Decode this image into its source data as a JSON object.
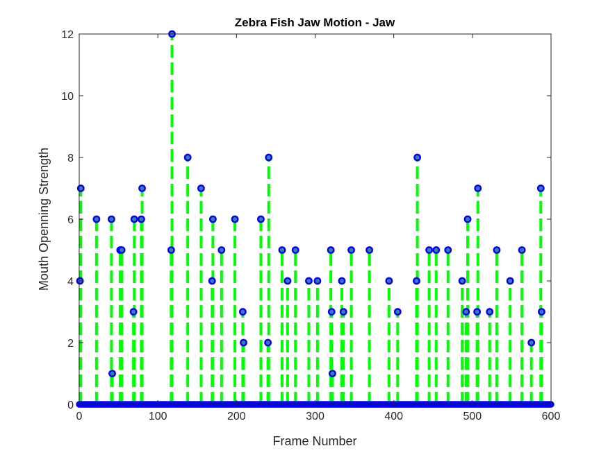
{
  "chart_data": {
    "type": "stem",
    "title": "Zebra Fish Jaw Motion - Jaw",
    "xlabel": "Frame Number",
    "ylabel": "Mouth Openning Strength",
    "xlim": [
      0,
      600
    ],
    "ylim": [
      0,
      12
    ],
    "xticks": [
      0,
      100,
      200,
      300,
      400,
      500,
      600
    ],
    "yticks": [
      0,
      2,
      4,
      6,
      8,
      10,
      12
    ],
    "grid": false,
    "colors": {
      "stem": "#00ff00",
      "marker": "#0000ff",
      "axis": "#262626"
    },
    "baseline_x_range": [
      0,
      600
    ],
    "points": [
      {
        "x": 1,
        "y": 4
      },
      {
        "x": 2,
        "y": 7
      },
      {
        "x": 22,
        "y": 6
      },
      {
        "x": 41,
        "y": 6
      },
      {
        "x": 42,
        "y": 1
      },
      {
        "x": 52,
        "y": 5
      },
      {
        "x": 54,
        "y": 5
      },
      {
        "x": 69,
        "y": 3
      },
      {
        "x": 70,
        "y": 6
      },
      {
        "x": 79,
        "y": 6
      },
      {
        "x": 80,
        "y": 7
      },
      {
        "x": 117,
        "y": 5
      },
      {
        "x": 118,
        "y": 12
      },
      {
        "x": 138,
        "y": 8
      },
      {
        "x": 155,
        "y": 7
      },
      {
        "x": 169,
        "y": 4
      },
      {
        "x": 170,
        "y": 6
      },
      {
        "x": 181,
        "y": 5
      },
      {
        "x": 198,
        "y": 6
      },
      {
        "x": 208,
        "y": 3
      },
      {
        "x": 209,
        "y": 2
      },
      {
        "x": 231,
        "y": 6
      },
      {
        "x": 240,
        "y": 2
      },
      {
        "x": 241,
        "y": 8
      },
      {
        "x": 258,
        "y": 5
      },
      {
        "x": 265,
        "y": 4
      },
      {
        "x": 275,
        "y": 5
      },
      {
        "x": 292,
        "y": 4
      },
      {
        "x": 303,
        "y": 4
      },
      {
        "x": 320,
        "y": 5
      },
      {
        "x": 321,
        "y": 3
      },
      {
        "x": 322,
        "y": 1
      },
      {
        "x": 334,
        "y": 4
      },
      {
        "x": 336,
        "y": 3
      },
      {
        "x": 346,
        "y": 5
      },
      {
        "x": 369,
        "y": 5
      },
      {
        "x": 394,
        "y": 4
      },
      {
        "x": 405,
        "y": 3
      },
      {
        "x": 429,
        "y": 4
      },
      {
        "x": 430,
        "y": 8
      },
      {
        "x": 445,
        "y": 5
      },
      {
        "x": 454,
        "y": 5
      },
      {
        "x": 469,
        "y": 5
      },
      {
        "x": 487,
        "y": 4
      },
      {
        "x": 492,
        "y": 3
      },
      {
        "x": 494,
        "y": 6
      },
      {
        "x": 506,
        "y": 3
      },
      {
        "x": 507,
        "y": 7
      },
      {
        "x": 522,
        "y": 3
      },
      {
        "x": 531,
        "y": 5
      },
      {
        "x": 548,
        "y": 4
      },
      {
        "x": 563,
        "y": 5
      },
      {
        "x": 575,
        "y": 2
      },
      {
        "x": 587,
        "y": 7
      },
      {
        "x": 588,
        "y": 3
      }
    ]
  }
}
